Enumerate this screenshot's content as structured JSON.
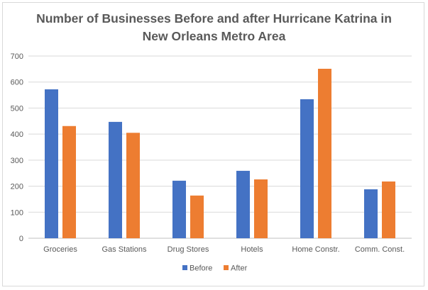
{
  "chart_data": {
    "type": "bar",
    "title_line1": "Number of Businesses Before and after Hurricane Katrina in",
    "title_line2": "New Orleans Metro Area",
    "categories": [
      "Groceries",
      "Gas Stations",
      "Drug Stores",
      "Hotels",
      "Home Constr.",
      "Comm. Const."
    ],
    "series": [
      {
        "name": "Before",
        "values": [
          572,
          447,
          221,
          259,
          534,
          188
        ],
        "color": "#4472c4"
      },
      {
        "name": "After",
        "values": [
          431,
          405,
          164,
          226,
          651,
          218
        ],
        "color": "#ed7d31"
      }
    ],
    "ylim": [
      0,
      700
    ],
    "yticks": [
      0,
      100,
      200,
      300,
      400,
      500,
      600,
      700
    ],
    "grid": true,
    "legend_position": "bottom"
  }
}
